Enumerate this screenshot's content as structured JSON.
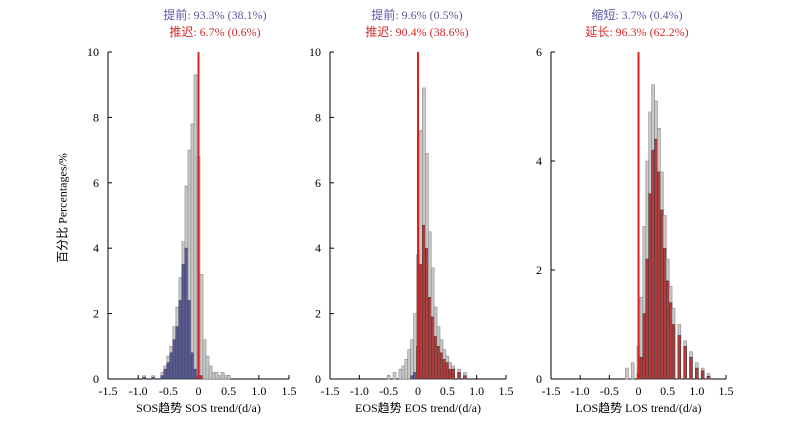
{
  "chart_data": [
    {
      "type": "bar",
      "annotation_line1": "提前: 93.3% (38.1%)",
      "annotation_line2": "推迟: 6.7% (0.6%)",
      "xlabel": "SOS趋势 SOS trend/(d/a)",
      "ylabel": "百分比 Percentages/%",
      "xlim": [
        -1.5,
        1.5
      ],
      "ylim": [
        0,
        10
      ],
      "xticks": [
        "-1.5",
        "-1.0",
        "-0.5",
        "0",
        "0.5",
        "1.0",
        "1.5"
      ],
      "yticks": [
        "0",
        "2",
        "4",
        "6",
        "8",
        "10"
      ],
      "reference_line_x": 0,
      "colors": {
        "total": "#c8c8c8",
        "significant_negative": "#5a5a9a",
        "significant_positive": "#b23b3b",
        "reference": "#e02020"
      },
      "bins": {
        "centers": [
          -0.9,
          -0.75,
          -0.6,
          -0.55,
          -0.5,
          -0.45,
          -0.4,
          -0.35,
          -0.3,
          -0.25,
          -0.2,
          -0.15,
          -0.1,
          -0.05,
          0.0,
          0.05,
          0.1,
          0.15,
          0.2,
          0.25,
          0.3,
          0.35,
          0.4,
          0.45,
          0.5
        ],
        "total": [
          0.1,
          0.1,
          0.2,
          0.4,
          0.7,
          1.0,
          1.6,
          2.2,
          3.1,
          4.2,
          5.9,
          7.0,
          7.8,
          9.3,
          6.8,
          3.2,
          1.2,
          0.7,
          0.4,
          0.2,
          0.2,
          0.1,
          0.2,
          0.1,
          0.1
        ],
        "significant": [
          0.05,
          0.05,
          0.1,
          0.3,
          0.5,
          0.8,
          1.2,
          1.6,
          2.4,
          3.5,
          4.0,
          2.4,
          0.8,
          0.3,
          0.1,
          0.1,
          0.0,
          0.0,
          0.0,
          0.0,
          0.0,
          0.0,
          0.0,
          0.0,
          0.0
        ]
      }
    },
    {
      "type": "bar",
      "annotation_line1": "提前: 9.6% (0.5%)",
      "annotation_line2": "推迟: 90.4% (38.6%)",
      "xlabel": "EOS趋势 EOS trend/(d/a)",
      "ylabel": "",
      "xlim": [
        -1.5,
        1.5
      ],
      "ylim": [
        0,
        10
      ],
      "xticks": [
        "-1.5",
        "-1.0",
        "-0.5",
        "0",
        "0.5",
        "1.0",
        "1.5"
      ],
      "yticks": [
        "0",
        "2",
        "4",
        "6",
        "8",
        "10"
      ],
      "reference_line_x": 0,
      "colors": {
        "total": "#c8c8c8",
        "significant_negative": "#5a5a9a",
        "significant_positive": "#b23b3b",
        "reference": "#e02020"
      },
      "bins": {
        "centers": [
          -0.5,
          -0.4,
          -0.3,
          -0.25,
          -0.2,
          -0.15,
          -0.1,
          -0.05,
          0.0,
          0.05,
          0.1,
          0.15,
          0.2,
          0.25,
          0.3,
          0.35,
          0.4,
          0.45,
          0.5,
          0.55,
          0.6,
          0.7,
          0.8
        ],
        "total": [
          0.1,
          0.2,
          0.3,
          0.4,
          0.6,
          0.9,
          1.2,
          2.0,
          3.8,
          7.6,
          8.9,
          6.9,
          4.5,
          3.4,
          2.2,
          1.6,
          1.2,
          0.9,
          0.7,
          0.5,
          0.4,
          0.3,
          0.2
        ],
        "significant": [
          0.0,
          0.0,
          0.0,
          0.0,
          0.0,
          0.0,
          0.1,
          0.2,
          1.0,
          3.5,
          4.7,
          4.0,
          2.5,
          1.9,
          1.3,
          1.0,
          0.8,
          0.6,
          0.5,
          0.3,
          0.3,
          0.2,
          0.1
        ]
      }
    },
    {
      "type": "bar",
      "annotation_line1": "缩短: 3.7% (0.4%)",
      "annotation_line2": "延长: 96.3% (62.2%)",
      "xlabel": "LOS趋势 LOS trend/(d/a)",
      "ylabel": "",
      "xlim": [
        -1.5,
        1.5
      ],
      "ylim": [
        0,
        6
      ],
      "xticks": [
        "-1.5",
        "-1.0",
        "-0.5",
        "0",
        "0.5",
        "1.0",
        "1.5"
      ],
      "yticks": [
        "0",
        "2",
        "4",
        "6"
      ],
      "reference_line_x": 0,
      "colors": {
        "total": "#c8c8c8",
        "significant_negative": "#5a5a9a",
        "significant_positive": "#b23b3b",
        "reference": "#e02020"
      },
      "bins": {
        "centers": [
          -0.2,
          -0.1,
          0.0,
          0.05,
          0.1,
          0.15,
          0.2,
          0.25,
          0.3,
          0.35,
          0.4,
          0.45,
          0.5,
          0.55,
          0.6,
          0.7,
          0.8,
          0.9,
          1.0,
          1.1,
          1.2
        ],
        "total": [
          0.2,
          0.3,
          0.6,
          1.5,
          2.8,
          4.0,
          4.9,
          5.4,
          5.1,
          4.6,
          3.8,
          3.0,
          2.2,
          1.7,
          1.3,
          1.0,
          0.7,
          0.5,
          0.3,
          0.2,
          0.1
        ],
        "significant": [
          0.0,
          0.0,
          0.1,
          0.4,
          1.2,
          2.2,
          3.4,
          4.2,
          4.4,
          3.8,
          3.1,
          2.4,
          1.8,
          1.4,
          1.0,
          0.8,
          0.6,
          0.4,
          0.2,
          0.15,
          0.05
        ]
      }
    }
  ]
}
